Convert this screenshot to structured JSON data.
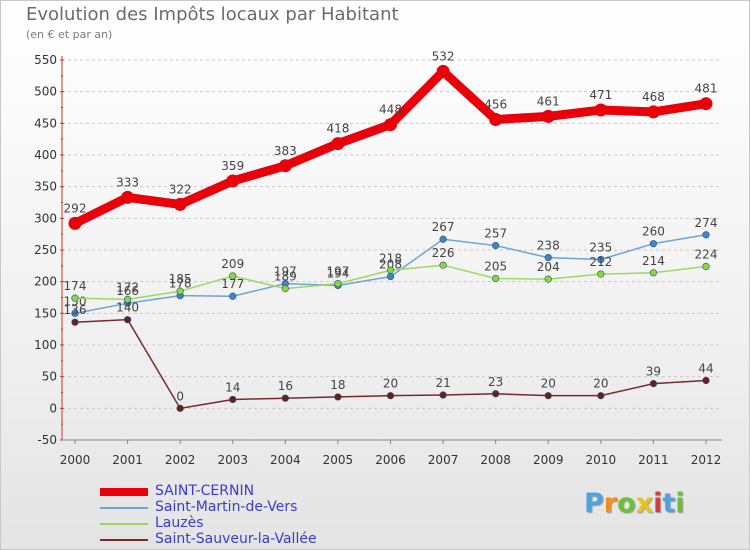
{
  "header": {
    "title": "Evolution des Impôts locaux par Habitant",
    "subtitle": "(en € et par an)"
  },
  "logo": {
    "text": "Proxiti",
    "letter_colors": [
      "#4fa3e0",
      "#f28c1c",
      "#6dbf3b",
      "#e8c21a",
      "#d93a3a",
      "#4fa3e0",
      "#6dbf3b"
    ]
  },
  "chart_data": {
    "type": "line",
    "title": "Evolution des Impôts locaux par Habitant",
    "subtitle": "(en € et par an)",
    "xlabel": "",
    "ylabel": "",
    "x": [
      "2000",
      "2001",
      "2002",
      "2003",
      "2004",
      "2005",
      "2006",
      "2007",
      "2008",
      "2009",
      "2010",
      "2011",
      "2012"
    ],
    "yticks": [
      -50,
      0,
      50,
      100,
      150,
      200,
      250,
      300,
      350,
      400,
      450,
      500,
      550
    ],
    "ylim": [
      -50,
      550
    ],
    "grid": "horizontal dashed",
    "legend_position": "bottom-left",
    "series": [
      {
        "name": "SAINT-CERNIN",
        "color": "#e8000b",
        "point_color": "#e8000b",
        "emphasis": true,
        "values": [
          292,
          333,
          322,
          359,
          383,
          418,
          448,
          532,
          456,
          461,
          471,
          468,
          481
        ]
      },
      {
        "name": "Saint-Martin-de-Vers",
        "color": "#6aa4d8",
        "point_color": "#3f86c6",
        "emphasis": false,
        "values": [
          150,
          166,
          178,
          177,
          197,
          194,
          208,
          267,
          257,
          238,
          235,
          260,
          274
        ]
      },
      {
        "name": "Lauzès",
        "color": "#9ad860",
        "point_color": "#86d93f",
        "emphasis": false,
        "values": [
          174,
          172,
          185,
          209,
          189,
          197,
          218,
          226,
          205,
          204,
          212,
          214,
          224
        ]
      },
      {
        "name": "Saint-Sauveur-la-Vallée",
        "color": "#7a2a2a",
        "point_color": "#6a1f1f",
        "emphasis": false,
        "values": [
          136,
          140,
          0,
          14,
          16,
          18,
          20,
          21,
          23,
          20,
          20,
          39,
          44
        ]
      }
    ]
  }
}
